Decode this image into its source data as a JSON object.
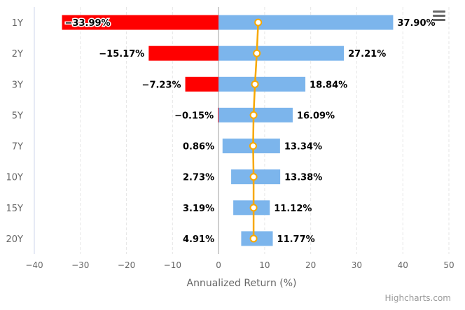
{
  "chart_data": {
    "type": "bar",
    "orientation": "horizontal",
    "categories": [
      "1Y",
      "2Y",
      "3Y",
      "5Y",
      "7Y",
      "10Y",
      "15Y",
      "20Y"
    ],
    "ranges": [
      {
        "low": -33.99,
        "high": 37.9
      },
      {
        "low": -15.17,
        "high": 27.21
      },
      {
        "low": -7.23,
        "high": 18.84
      },
      {
        "low": -0.15,
        "high": 16.09
      },
      {
        "low": 0.86,
        "high": 13.34
      },
      {
        "low": 2.73,
        "high": 13.38
      },
      {
        "low": 3.19,
        "high": 11.12
      },
      {
        "low": 4.91,
        "high": 11.77
      }
    ],
    "low_labels": [
      "-33.99%",
      "-15.17%",
      "-7.23%",
      "-0.15%",
      "0.86%",
      "2.73%",
      "3.19%",
      "4.91%"
    ],
    "high_labels": [
      "37.90%",
      "27.21%",
      "18.84%",
      "16.09%",
      "13.34%",
      "13.38%",
      "11.12%",
      "11.77%"
    ],
    "line_values": [
      8.6,
      8.3,
      7.9,
      7.6,
      7.5,
      7.6,
      7.6,
      7.6
    ],
    "xlabel": "Annualized Return (%)",
    "xlim": [
      -40,
      50
    ],
    "xticks": [
      -40,
      -30,
      -20,
      -10,
      0,
      10,
      20,
      30,
      40,
      50
    ],
    "grid": true,
    "colors": {
      "positive": "#7cb5ec",
      "negative": "#ff0000",
      "line": "#f7a800",
      "marker_fill": "#ffffff",
      "grid": "#e6e6e6",
      "zero_line": "#a0a0a0",
      "axis_text": "#666666"
    }
  },
  "menu": {
    "icon": "hamburger-menu-icon"
  },
  "credit": "Highcharts.com"
}
